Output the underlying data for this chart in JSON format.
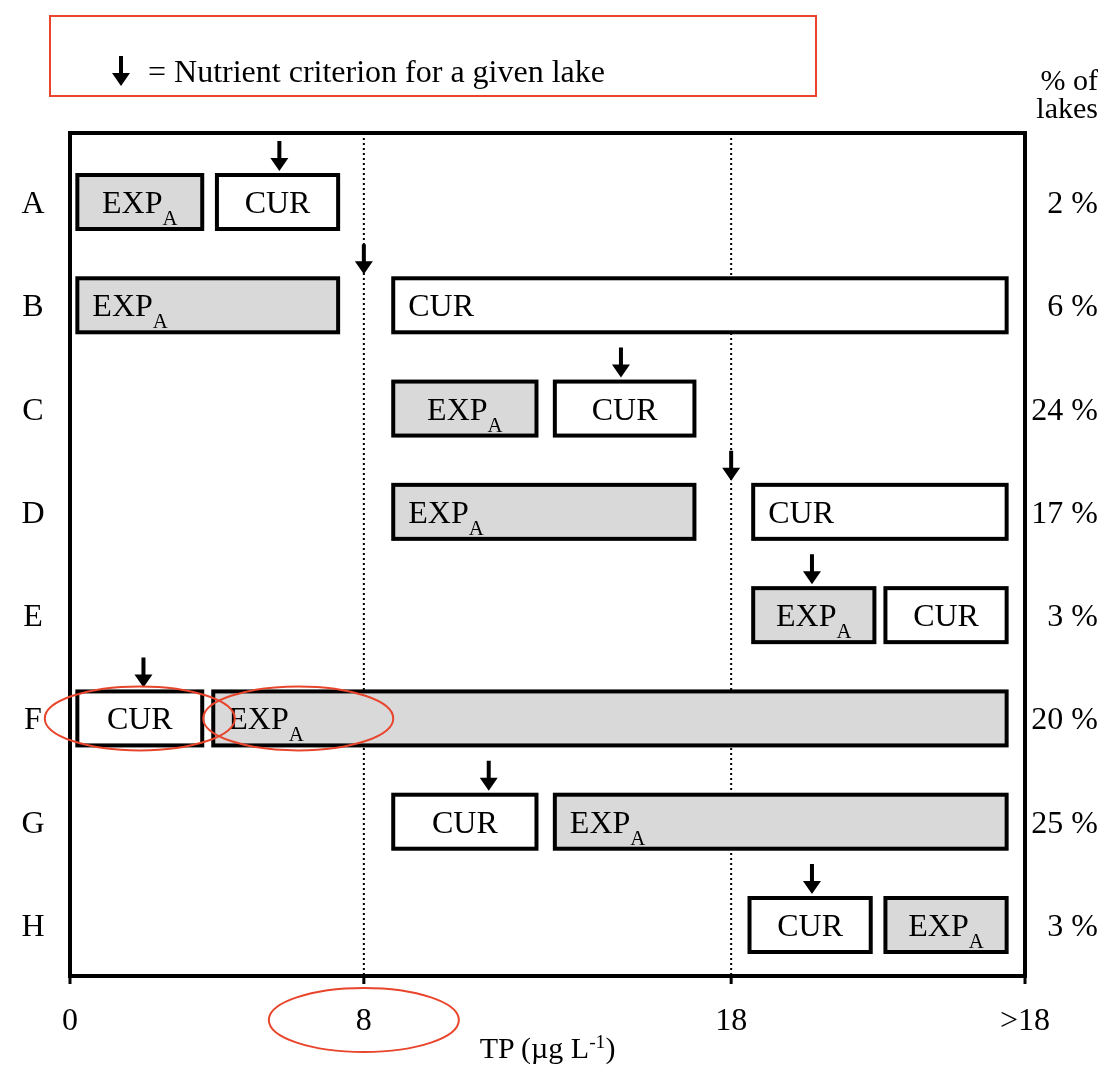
{
  "chart_data": {
    "type": "bar",
    "orientation": "horizontal",
    "xlabel": "TP (µg L$^{-1}$)",
    "y2label": "% of lakes",
    "categories": [
      "A",
      "B",
      "C",
      "D",
      "E",
      "F",
      "G",
      "H"
    ],
    "xlim": [
      0,
      26
    ],
    "xticks": [
      0,
      8,
      18,
      {
        "value": 26,
        "label": ">18"
      }
    ],
    "series": [
      {
        "name": "EXP$_{A}$",
        "color": "#d9d9d9",
        "base": [
          0.2,
          0.2,
          8.8,
          8.8,
          18.6,
          3.9,
          13.2,
          22.2
        ],
        "values": [
          3.4,
          7.1,
          3.9,
          8.2,
          3.3,
          21.6,
          12.3,
          3.3
        ]
      },
      {
        "name": "CUR",
        "color": "#ffffff",
        "base": [
          4.0,
          8.8,
          13.2,
          18.6,
          22.2,
          0.2,
          8.8,
          18.5
        ],
        "values": [
          3.3,
          16.7,
          3.8,
          6.9,
          3.3,
          3.4,
          3.9,
          3.3
        ]
      },
      {
        "type": "scatter",
        "name": "= Nutrient criterion for a given lake",
        "color": "#000000",
        "marker": "triangle",
        "values": [
          5.7,
          8,
          15.0,
          18,
          20.2,
          2.0,
          11.4,
          20.2
        ]
      }
    ],
    "ref_lines": [
      {
        "axis": "x",
        "value": 8,
        "line_style": "dotted",
        "color": "#000000"
      },
      {
        "axis": "x",
        "value": 18,
        "line_style": "dotted",
        "color": "#000000"
      }
    ],
    "annotations": [
      "2 %",
      "6 %",
      "24 %",
      "17 %",
      "3 %",
      "20 %",
      "25 %",
      "3 %"
    ],
    "legend": "top",
    "grid": false
  }
}
